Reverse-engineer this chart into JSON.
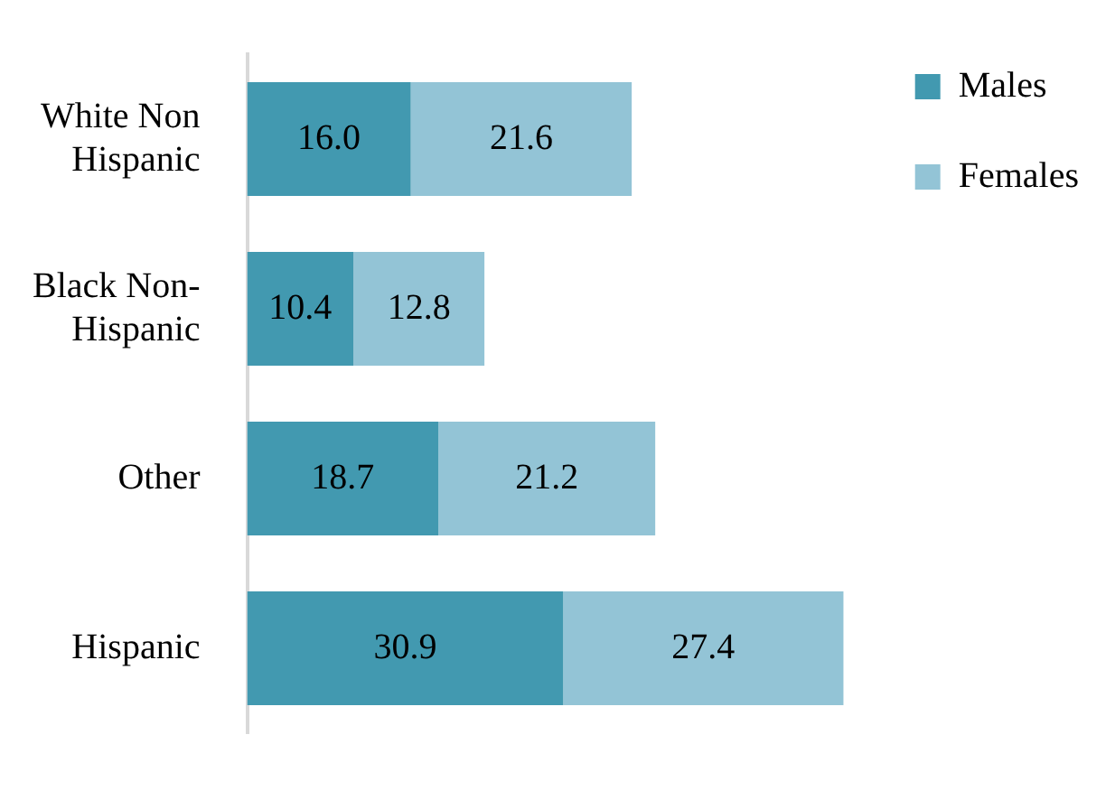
{
  "chart_data": {
    "type": "bar",
    "orientation": "horizontal",
    "stacked": true,
    "categories": [
      "White Non Hispanic",
      "Black Non-Hispanic",
      "Other",
      "Hispanic"
    ],
    "series": [
      {
        "name": "Males",
        "color": "#4299b0",
        "values": [
          16.0,
          10.4,
          18.7,
          30.9
        ],
        "value_labels": [
          "16.0",
          "10.4",
          "18.7",
          "30.9"
        ]
      },
      {
        "name": "Females",
        "color": "#93c4d6",
        "values": [
          21.6,
          12.8,
          21.2,
          27.4
        ],
        "value_labels": [
          "21.6",
          "12.8",
          "21.2",
          "27.4"
        ]
      }
    ],
    "legend": "right"
  }
}
